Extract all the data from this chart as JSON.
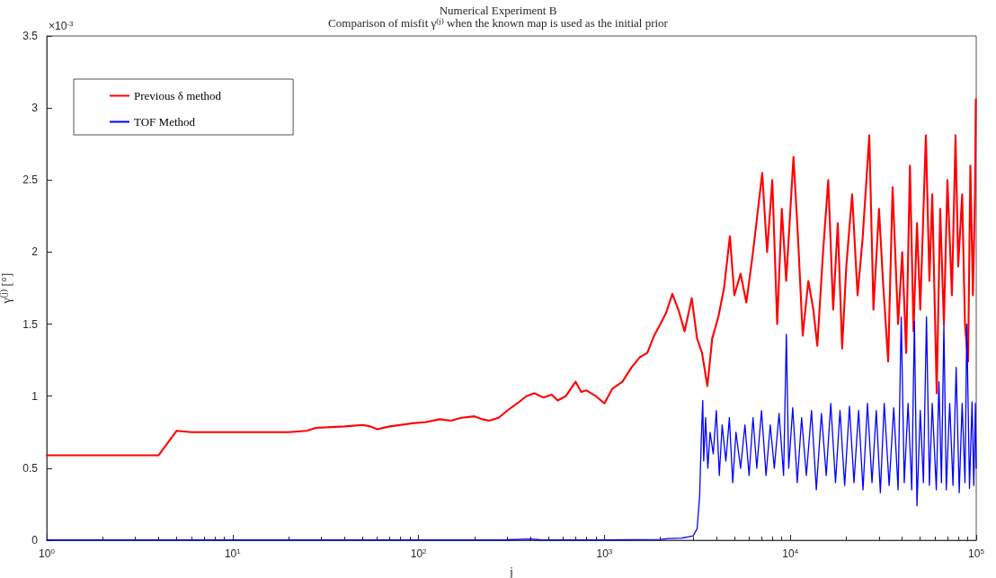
{
  "chart_data": {
    "type": "line",
    "title": "Numerical Experiment B",
    "subtitle": "Comparison of misfit γ$^{(j)}$ when the known map is used as the initial prior",
    "xlabel": "j",
    "ylabel": "γ$^{(j)}$ [°]",
    "annotations": [
      "×10$^{-3}$"
    ],
    "log": "x",
    "grid": false,
    "legend": "top left",
    "marker": "none",
    "line_style": "solid",
    "xlim": [
      1,
      100000
    ],
    "xticks": [
      {
        "value": 1,
        "label": "10$^{0}$"
      },
      {
        "value": 10,
        "label": "10$^{1}$"
      },
      {
        "value": 100,
        "label": "10$^{2}$"
      },
      {
        "value": 1000,
        "label": "10$^{3}$"
      },
      {
        "value": 10000,
        "label": "10$^{4}$"
      },
      {
        "value": 100000,
        "label": "10$^{5}$"
      }
    ],
    "ylim": [
      0,
      3.5
    ],
    "yticks": [
      0,
      0.5,
      1,
      1.5,
      2,
      2.5,
      3,
      3.5
    ],
    "series": [
      {
        "name": "Previous δ method",
        "color": "#ff0000",
        "x": [
          1,
          4,
          5,
          6,
          10,
          20,
          25,
          28,
          40,
          50,
          55,
          60,
          70,
          90,
          110,
          130,
          150,
          170,
          200,
          220,
          240,
          270,
          300,
          340,
          380,
          420,
          470,
          520,
          560,
          620,
          700,
          750,
          800,
          900,
          1000,
          1100,
          1250,
          1400,
          1550,
          1700,
          1850,
          2000,
          2150,
          2320,
          2500,
          2700,
          2950,
          3150,
          3350,
          3580,
          3800,
          4100,
          4400,
          4730,
          5000,
          5400,
          5800,
          6300,
          7060,
          7500,
          8000,
          8500,
          9000,
          9500,
          10400,
          11000,
          11660,
          12500,
          13300,
          13970,
          15000,
          16000,
          17000,
          18000,
          19000,
          20000,
          21500,
          23000,
          24500,
          26600,
          28000,
          30000,
          31500,
          33600,
          35500,
          38000,
          40000,
          42000,
          44000,
          46000,
          48000,
          50000,
          53600,
          56000,
          58000,
          61300,
          64000,
          67000,
          70000,
          74000,
          77400,
          80000,
          84000,
          87000,
          90400,
          93000,
          96000,
          98500,
          99500
        ],
        "values": [
          0.59,
          0.59,
          0.76,
          0.75,
          0.75,
          0.75,
          0.76,
          0.78,
          0.79,
          0.8,
          0.79,
          0.77,
          0.79,
          0.81,
          0.82,
          0.84,
          0.83,
          0.85,
          0.86,
          0.84,
          0.83,
          0.85,
          0.9,
          0.95,
          1.0,
          1.02,
          0.99,
          1.01,
          0.97,
          1.0,
          1.1,
          1.03,
          1.04,
          1.0,
          0.95,
          1.05,
          1.1,
          1.2,
          1.27,
          1.3,
          1.42,
          1.5,
          1.58,
          1.71,
          1.6,
          1.45,
          1.68,
          1.4,
          1.3,
          1.07,
          1.4,
          1.55,
          1.75,
          2.11,
          1.7,
          1.85,
          1.65,
          2.0,
          2.55,
          2.0,
          2.5,
          1.5,
          2.3,
          1.8,
          2.66,
          2.1,
          1.42,
          1.8,
          1.6,
          1.35,
          2.0,
          2.5,
          1.6,
          2.2,
          1.33,
          1.9,
          2.4,
          1.7,
          2.1,
          2.81,
          1.6,
          2.3,
          1.8,
          1.24,
          2.45,
          1.5,
          2.0,
          1.3,
          2.6,
          1.45,
          2.2,
          1.6,
          2.81,
          1.8,
          2.4,
          1.02,
          2.3,
          1.5,
          2.5,
          1.7,
          2.81,
          1.9,
          2.4,
          1.5,
          1.24,
          2.6,
          1.7,
          2.4,
          3.06
        ]
      },
      {
        "name": "TOF Method",
        "color": "#0000ff",
        "x": [
          1,
          100,
          300,
          400,
          450,
          1000,
          2000,
          2200,
          2600,
          3000,
          3150,
          3250,
          3320,
          3380,
          3420,
          3500,
          3600,
          3700,
          3850,
          4000,
          4150,
          4300,
          4500,
          4700,
          4900,
          5100,
          5400,
          5700,
          6000,
          6300,
          6600,
          7000,
          7400,
          7800,
          8200,
          8700,
          9200,
          9520,
          9800,
          10300,
          10900,
          11500,
          12200,
          13000,
          13800,
          14700,
          15600,
          16500,
          17500,
          18500,
          19600,
          20800,
          22000,
          23300,
          24600,
          26000,
          27500,
          29000,
          30500,
          32000,
          34000,
          36000,
          38000,
          39500,
          41000,
          43000,
          45000,
          46500,
          48000,
          50000,
          52000,
          54000,
          56000,
          58000,
          61000,
          63000,
          65000,
          67000,
          69000,
          72000,
          75000,
          78000,
          81000,
          84000,
          87000,
          89000,
          92000,
          95000,
          97000,
          99000,
          100000
        ],
        "values": [
          0.002,
          0.002,
          0.003,
          0.008,
          0.003,
          0.002,
          0.006,
          0.012,
          0.015,
          0.03,
          0.08,
          0.3,
          0.7,
          0.97,
          0.55,
          0.85,
          0.5,
          0.75,
          0.6,
          0.9,
          0.45,
          0.8,
          0.55,
          0.85,
          0.4,
          0.75,
          0.5,
          0.8,
          0.45,
          0.85,
          0.5,
          0.9,
          0.45,
          0.8,
          0.5,
          0.88,
          0.45,
          1.43,
          0.5,
          0.92,
          0.4,
          0.85,
          0.45,
          0.9,
          0.35,
          0.88,
          0.45,
          0.95,
          0.4,
          0.9,
          0.38,
          0.93,
          0.4,
          0.9,
          0.35,
          0.95,
          0.4,
          0.9,
          0.33,
          0.95,
          0.38,
          0.92,
          0.35,
          1.55,
          0.4,
          0.95,
          0.35,
          1.52,
          0.24,
          0.9,
          0.4,
          1.55,
          0.38,
          0.95,
          0.35,
          1.1,
          0.4,
          1.5,
          0.35,
          0.95,
          0.38,
          1.2,
          0.33,
          0.95,
          0.4,
          1.5,
          0.36,
          0.96,
          0.38,
          0.95,
          0.5
        ]
      }
    ]
  }
}
